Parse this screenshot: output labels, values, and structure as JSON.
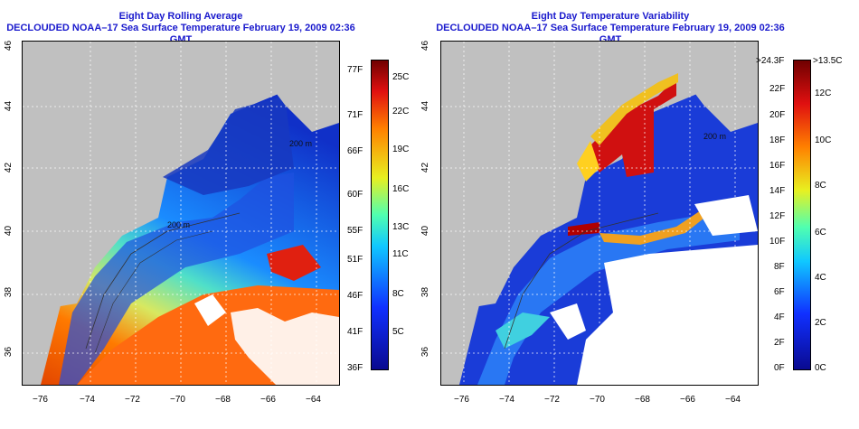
{
  "left_panel": {
    "title_line1": "Eight Day Rolling Average",
    "title_line2": "DECLOUDED NOAA–17 Sea Surface Temperature February 19, 2009 02:36 GMT",
    "colorbar_f": [
      "77F",
      "71F",
      "66F",
      "60F",
      "55F",
      "51F",
      "46F",
      "41F",
      "36F"
    ],
    "colorbar_c": [
      "25C",
      "22C",
      "19C",
      "16C",
      "13C",
      "11C",
      "8C",
      "5C"
    ],
    "contour_label_1": "200 m",
    "contour_label_2": "200 m"
  },
  "right_panel": {
    "title_line1": "Eight Day Temperature Variability",
    "title_line2": "DECLOUDED NOAA–17 Sea Surface Temperature February 19, 2009 02:36 GMT",
    "colorbar_f": [
      ">24.3F",
      "22F",
      "20F",
      "18F",
      "16F",
      "14F",
      "12F",
      "10F",
      "8F",
      "6F",
      "4F",
      "2F",
      "0F"
    ],
    "colorbar_c": [
      ">13.5C",
      "12C",
      "10C",
      "8C",
      "6C",
      "4C",
      "2C",
      "0C"
    ],
    "contour_label_1": "200 m"
  },
  "axes": {
    "x_ticks": [
      "−76",
      "−74",
      "−72",
      "−70",
      "−68",
      "−66",
      "−64"
    ],
    "y_ticks": [
      "36",
      "38",
      "40",
      "42",
      "44",
      "46"
    ]
  },
  "colors": {
    "land": "#c0c0c0",
    "title": "#1a1acd"
  }
}
